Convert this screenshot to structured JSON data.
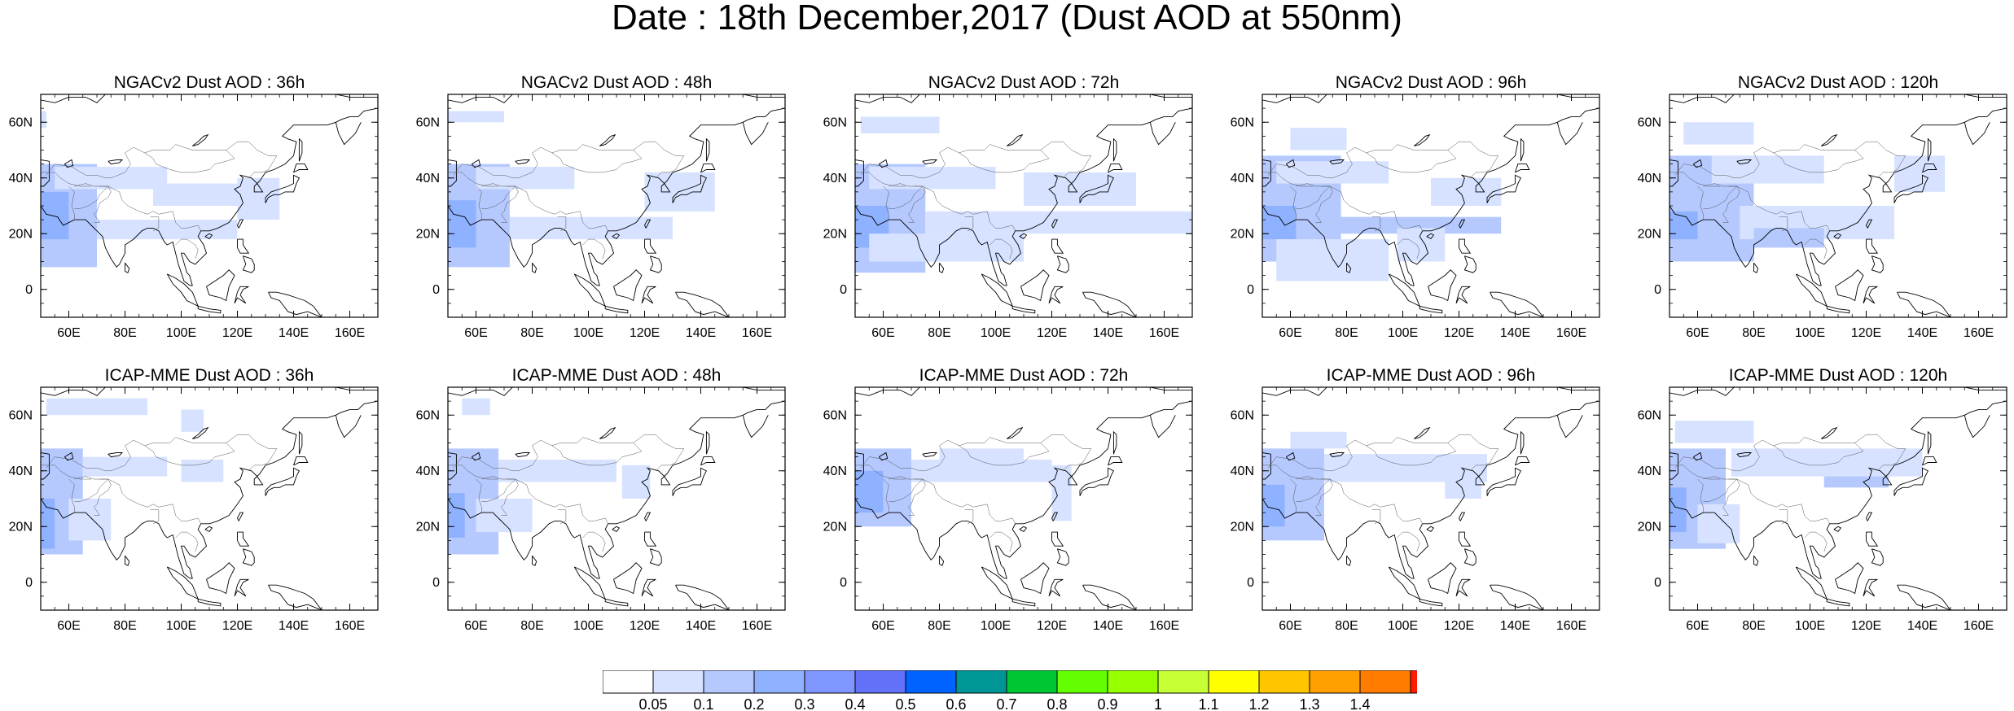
{
  "title": "Date : 18th December,2017 (Dust AOD at 550nm)",
  "axes": {
    "lon_ticks": [
      "60E",
      "80E",
      "100E",
      "120E",
      "140E",
      "160E"
    ],
    "lat_ticks": [
      "60N",
      "40N",
      "20N",
      "0"
    ],
    "lon_range": [
      50,
      170
    ],
    "lat_range": [
      -10,
      70
    ]
  },
  "colors": {
    "coast": "#000000",
    "frame": "#000000"
  },
  "colorbar": {
    "labels": [
      "0.05",
      "0.1",
      "0.2",
      "0.3",
      "0.4",
      "0.5",
      "0.6",
      "0.7",
      "0.8",
      "0.9",
      "1",
      "1.1",
      "1.2",
      "1.3",
      "1.4"
    ],
    "colors": [
      "#ffffff",
      "#d6e2ff",
      "#b5c9ff",
      "#8eb2ff",
      "#7f96ff",
      "#6370f8",
      "#0063ff",
      "#009696",
      "#00c633",
      "#63ff00",
      "#96ff00",
      "#c6ff33",
      "#ffff00",
      "#ffc600",
      "#ffa000",
      "#ff7c00",
      "#ff1900"
    ]
  },
  "panels": [
    {
      "title": "NGACv2 Dust AOD : 36h",
      "blobs": [
        {
          "lon": [
            50,
            70
          ],
          "lat": [
            8,
            45
          ],
          "level": 2
        },
        {
          "lon": [
            50,
            60
          ],
          "lat": [
            18,
            35
          ],
          "level": 3
        },
        {
          "lon": [
            70,
            120
          ],
          "lat": [
            18,
            25
          ],
          "level": 1
        },
        {
          "lon": [
            55,
            95
          ],
          "lat": [
            36,
            44
          ],
          "level": 1
        },
        {
          "lon": [
            120,
            135
          ],
          "lat": [
            25,
            40
          ],
          "level": 1
        },
        {
          "lon": [
            90,
            125
          ],
          "lat": [
            30,
            38
          ],
          "level": 1
        },
        {
          "lon": [
            50,
            52
          ],
          "lat": [
            58,
            64
          ],
          "level": 1
        }
      ]
    },
    {
      "title": "NGACv2 Dust AOD : 48h",
      "blobs": [
        {
          "lon": [
            50,
            72
          ],
          "lat": [
            8,
            45
          ],
          "level": 2
        },
        {
          "lon": [
            50,
            60
          ],
          "lat": [
            15,
            32
          ],
          "level": 3
        },
        {
          "lon": [
            72,
            130
          ],
          "lat": [
            18,
            26
          ],
          "level": 1
        },
        {
          "lon": [
            60,
            95
          ],
          "lat": [
            36,
            44
          ],
          "level": 1
        },
        {
          "lon": [
            120,
            145
          ],
          "lat": [
            28,
            42
          ],
          "level": 1
        },
        {
          "lon": [
            50,
            70
          ],
          "lat": [
            60,
            64
          ],
          "level": 1
        }
      ]
    },
    {
      "title": "NGACv2 Dust AOD : 72h",
      "blobs": [
        {
          "lon": [
            50,
            75
          ],
          "lat": [
            6,
            45
          ],
          "level": 2
        },
        {
          "lon": [
            50,
            62
          ],
          "lat": [
            15,
            30
          ],
          "level": 3
        },
        {
          "lon": [
            75,
            170
          ],
          "lat": [
            20,
            28
          ],
          "level": 1
        },
        {
          "lon": [
            55,
            110
          ],
          "lat": [
            10,
            20
          ],
          "level": 1
        },
        {
          "lon": [
            55,
            100
          ],
          "lat": [
            36,
            44
          ],
          "level": 1
        },
        {
          "lon": [
            110,
            150
          ],
          "lat": [
            30,
            42
          ],
          "level": 1
        },
        {
          "lon": [
            52,
            80
          ],
          "lat": [
            56,
            62
          ],
          "level": 1
        }
      ]
    },
    {
      "title": "NGACv2 Dust AOD : 96h",
      "blobs": [
        {
          "lon": [
            50,
            78
          ],
          "lat": [
            10,
            48
          ],
          "level": 2
        },
        {
          "lon": [
            50,
            62
          ],
          "lat": [
            18,
            30
          ],
          "level": 3
        },
        {
          "lon": [
            75,
            135
          ],
          "lat": [
            20,
            26
          ],
          "level": 2
        },
        {
          "lon": [
            55,
            95
          ],
          "lat": [
            3,
            18
          ],
          "level": 1
        },
        {
          "lon": [
            55,
            95
          ],
          "lat": [
            38,
            46
          ],
          "level": 1
        },
        {
          "lon": [
            60,
            80
          ],
          "lat": [
            50,
            58
          ],
          "level": 1
        },
        {
          "lon": [
            98,
            115
          ],
          "lat": [
            10,
            22
          ],
          "level": 1
        },
        {
          "lon": [
            110,
            135
          ],
          "lat": [
            30,
            40
          ],
          "level": 1
        }
      ]
    },
    {
      "title": "NGACv2 Dust AOD : 120h",
      "blobs": [
        {
          "lon": [
            50,
            80
          ],
          "lat": [
            10,
            48
          ],
          "level": 2
        },
        {
          "lon": [
            50,
            60
          ],
          "lat": [
            18,
            28
          ],
          "level": 3
        },
        {
          "lon": [
            75,
            130
          ],
          "lat": [
            18,
            30
          ],
          "level": 1
        },
        {
          "lon": [
            80,
            105
          ],
          "lat": [
            15,
            22
          ],
          "level": 2
        },
        {
          "lon": [
            65,
            105
          ],
          "lat": [
            38,
            48
          ],
          "level": 1
        },
        {
          "lon": [
            55,
            80
          ],
          "lat": [
            52,
            60
          ],
          "level": 1
        },
        {
          "lon": [
            130,
            148
          ],
          "lat": [
            35,
            48
          ],
          "level": 1
        }
      ]
    },
    {
      "title": "ICAP-MME Dust AOD : 36h",
      "blobs": [
        {
          "lon": [
            50,
            65
          ],
          "lat": [
            10,
            48
          ],
          "level": 2
        },
        {
          "lon": [
            50,
            55
          ],
          "lat": [
            12,
            30
          ],
          "level": 3
        },
        {
          "lon": [
            60,
            75
          ],
          "lat": [
            15,
            30
          ],
          "level": 1
        },
        {
          "lon": [
            65,
            95
          ],
          "lat": [
            38,
            45
          ],
          "level": 1
        },
        {
          "lon": [
            100,
            115
          ],
          "lat": [
            36,
            44
          ],
          "level": 1
        },
        {
          "lon": [
            52,
            88
          ],
          "lat": [
            60,
            66
          ],
          "level": 1
        },
        {
          "lon": [
            100,
            108
          ],
          "lat": [
            54,
            62
          ],
          "level": 1
        }
      ]
    },
    {
      "title": "ICAP-MME Dust AOD : 48h",
      "blobs": [
        {
          "lon": [
            50,
            68
          ],
          "lat": [
            10,
            48
          ],
          "level": 2
        },
        {
          "lon": [
            50,
            56
          ],
          "lat": [
            16,
            32
          ],
          "level": 3
        },
        {
          "lon": [
            60,
            80
          ],
          "lat": [
            18,
            30
          ],
          "level": 1
        },
        {
          "lon": [
            68,
            110
          ],
          "lat": [
            36,
            44
          ],
          "level": 1
        },
        {
          "lon": [
            112,
            122
          ],
          "lat": [
            30,
            42
          ],
          "level": 1
        },
        {
          "lon": [
            55,
            65
          ],
          "lat": [
            60,
            66
          ],
          "level": 1
        }
      ]
    },
    {
      "title": "ICAP-MME Dust AOD : 72h",
      "blobs": [
        {
          "lon": [
            50,
            70
          ],
          "lat": [
            20,
            48
          ],
          "level": 2
        },
        {
          "lon": [
            50,
            60
          ],
          "lat": [
            25,
            40
          ],
          "level": 3
        },
        {
          "lon": [
            70,
            120
          ],
          "lat": [
            36,
            44
          ],
          "level": 1
        },
        {
          "lon": [
            120,
            127
          ],
          "lat": [
            22,
            42
          ],
          "level": 1
        },
        {
          "lon": [
            80,
            110
          ],
          "lat": [
            44,
            48
          ],
          "level": 1
        }
      ]
    },
    {
      "title": "ICAP-MME Dust AOD : 96h",
      "blobs": [
        {
          "lon": [
            50,
            72
          ],
          "lat": [
            15,
            48
          ],
          "level": 2
        },
        {
          "lon": [
            50,
            58
          ],
          "lat": [
            20,
            35
          ],
          "level": 3
        },
        {
          "lon": [
            72,
            130
          ],
          "lat": [
            36,
            46
          ],
          "level": 1
        },
        {
          "lon": [
            115,
            128
          ],
          "lat": [
            30,
            38
          ],
          "level": 1
        },
        {
          "lon": [
            60,
            80
          ],
          "lat": [
            48,
            54
          ],
          "level": 1
        }
      ]
    },
    {
      "title": "ICAP-MME Dust AOD : 120h",
      "blobs": [
        {
          "lon": [
            50,
            70
          ],
          "lat": [
            12,
            48
          ],
          "level": 2
        },
        {
          "lon": [
            50,
            56
          ],
          "lat": [
            18,
            34
          ],
          "level": 3
        },
        {
          "lon": [
            105,
            128
          ],
          "lat": [
            34,
            44
          ],
          "level": 2
        },
        {
          "lon": [
            72,
            140
          ],
          "lat": [
            38,
            48
          ],
          "level": 1
        },
        {
          "lon": [
            52,
            80
          ],
          "lat": [
            50,
            58
          ],
          "level": 1
        },
        {
          "lon": [
            60,
            75
          ],
          "lat": [
            14,
            28
          ],
          "level": 1
        }
      ]
    }
  ]
}
